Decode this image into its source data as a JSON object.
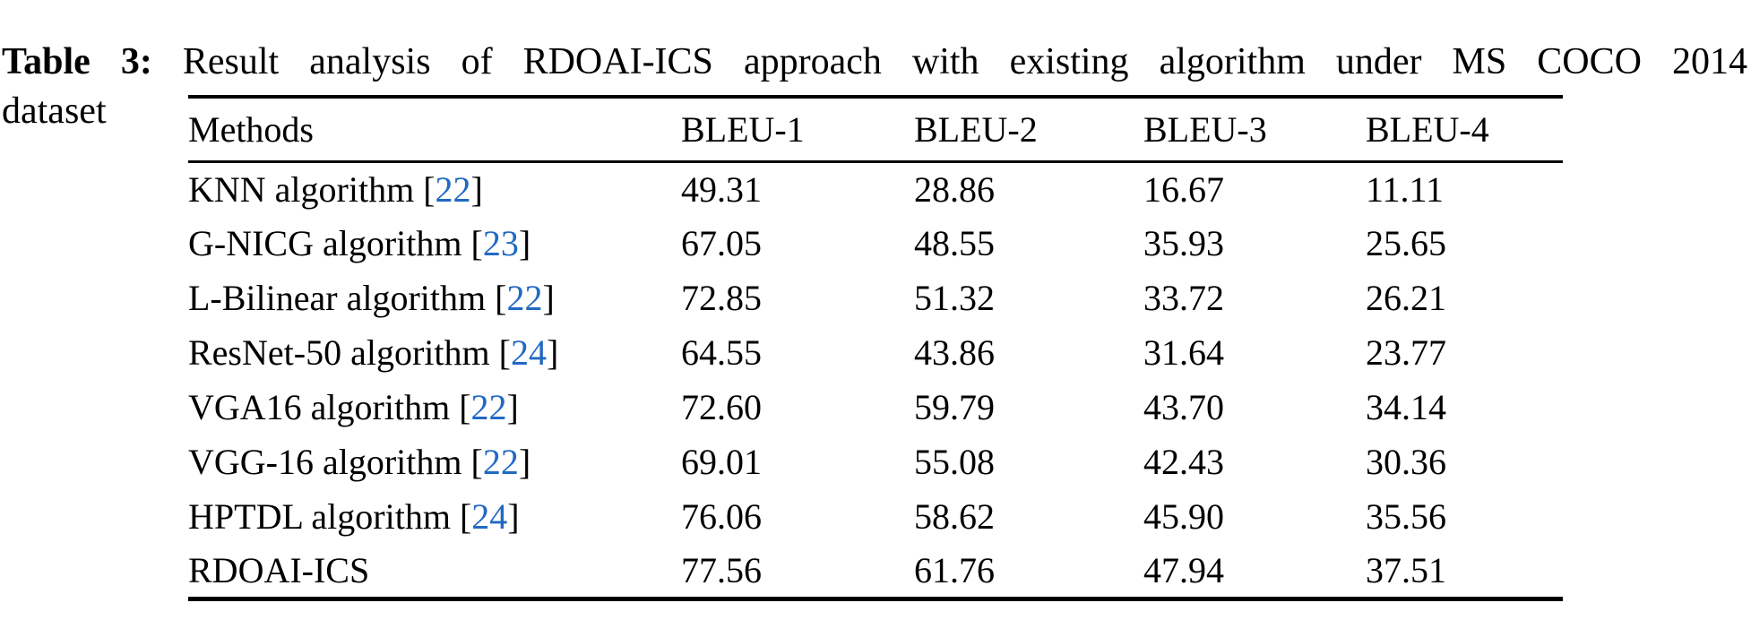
{
  "caption": {
    "label": "Table 3:",
    "line1": "Result analysis of RDOAI-ICS approach with existing algorithm under MS COCO 2014",
    "line2": "dataset"
  },
  "chart_data": {
    "type": "table",
    "columns": [
      "Methods",
      "BLEU-1",
      "BLEU-2",
      "BLEU-3",
      "BLEU-4"
    ],
    "rows": [
      {
        "method": "KNN algorithm",
        "ref": "22",
        "values": [
          "49.31",
          "28.86",
          "16.67",
          "11.11"
        ]
      },
      {
        "method": "G-NICG algorithm",
        "ref": "23",
        "values": [
          "67.05",
          "48.55",
          "35.93",
          "25.65"
        ]
      },
      {
        "method": "L-Bilinear algorithm",
        "ref": "22",
        "values": [
          "72.85",
          "51.32",
          "33.72",
          "26.21"
        ]
      },
      {
        "method": "ResNet-50 algorithm",
        "ref": "24",
        "values": [
          "64.55",
          "43.86",
          "31.64",
          "23.77"
        ]
      },
      {
        "method": "VGA16 algorithm",
        "ref": "22",
        "values": [
          "72.60",
          "59.79",
          "43.70",
          "34.14"
        ]
      },
      {
        "method": "VGG-16 algorithm",
        "ref": "22",
        "values": [
          "69.01",
          "55.08",
          "42.43",
          "30.36"
        ]
      },
      {
        "method": "HPTDL algorithm",
        "ref": "24",
        "values": [
          "76.06",
          "58.62",
          "45.90",
          "35.56"
        ]
      },
      {
        "method": "RDOAI-ICS",
        "ref": null,
        "values": [
          "77.56",
          "61.76",
          "47.94",
          "37.51"
        ]
      }
    ]
  },
  "colors": {
    "text": "#000000",
    "citation_link": "#2169c4",
    "rule": "#000000",
    "background": "#ffffff"
  }
}
